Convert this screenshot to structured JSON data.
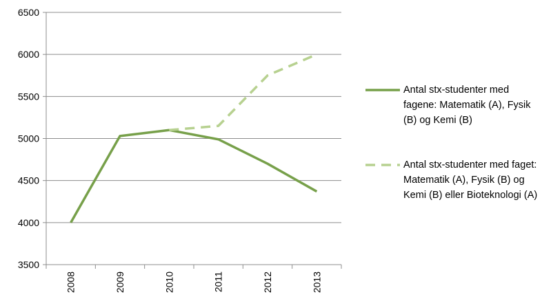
{
  "chart_data": {
    "type": "line",
    "categories": [
      "2008",
      "2009",
      "2010",
      "2011",
      "2012",
      "2013"
    ],
    "series": [
      {
        "name": "Antal stx-studenter med fagene: Matematik (A), Fysik (B) og Kemi (B)",
        "color": "#77a04a",
        "dash": false,
        "values": [
          4000,
          5030,
          5100,
          4990,
          4700,
          4370
        ]
      },
      {
        "name": "Antal stx-studenter med faget: Matematik (A), Fysik (B) og Kemi (B) eller Bioteknologi (A)",
        "color": "#b7d190",
        "dash": true,
        "values": [
          null,
          null,
          5100,
          5150,
          5750,
          6000
        ]
      }
    ],
    "ylim": [
      3500,
      6500
    ],
    "yticks": [
      3500,
      4000,
      4500,
      5000,
      5500,
      6000,
      6500
    ],
    "grid": true,
    "legend": "right"
  }
}
